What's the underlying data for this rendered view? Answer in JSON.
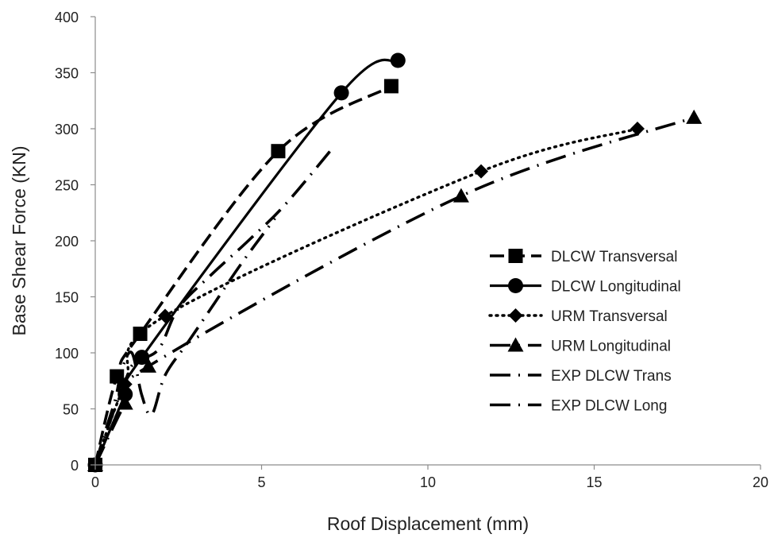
{
  "chart_data": {
    "type": "line",
    "title": "",
    "xlabel": "Roof Displacement (mm)",
    "ylabel": "Base Shear Force (KN)",
    "xlim": [
      0,
      20
    ],
    "ylim": [
      0,
      400
    ],
    "xticks": [
      "0",
      "5",
      "10",
      "15",
      "20"
    ],
    "yticks": [
      "0",
      "50",
      "100",
      "150",
      "200",
      "250",
      "300",
      "350",
      "400"
    ],
    "grid": false,
    "legend_position": "right",
    "series": [
      {
        "name": "DLCW Transversal",
        "marker": "square",
        "dash": "dashed",
        "x": [
          0,
          0.65,
          1.35,
          5.5,
          8.9
        ],
        "y": [
          0,
          79,
          117,
          280,
          338
        ]
      },
      {
        "name": "DLCW Longitudinal",
        "marker": "circle",
        "dash": "solid",
        "x": [
          0,
          0.9,
          1.4,
          7.4,
          9.1
        ],
        "y": [
          0,
          63,
          96,
          332,
          361
        ]
      },
      {
        "name": "URM Transversal",
        "marker": "diamond",
        "dash": "dotted",
        "x": [
          0,
          0.9,
          2.1,
          11.6,
          16.3
        ],
        "y": [
          0,
          72,
          133,
          262,
          300
        ]
      },
      {
        "name": "URM Longitudinal",
        "marker": "triangle",
        "dash": "longdashdot",
        "x": [
          0,
          0.9,
          1.6,
          11.0,
          18.0
        ],
        "y": [
          0,
          55,
          88,
          240,
          310
        ]
      },
      {
        "name": "EXP DLCW Trans",
        "marker": "none",
        "dash": "longdashdot",
        "x": [
          0,
          0.4,
          0.9,
          1.2,
          1.9,
          2.5,
          3.5,
          4.6,
          5.7,
          7.2
        ],
        "y": [
          0,
          35,
          75,
          92,
          103,
          140,
          170,
          200,
          232,
          285
        ]
      },
      {
        "name": "EXP DLCW Long",
        "marker": "none",
        "dash": "longdashdot",
        "x": [
          0,
          0.3,
          0.6,
          0.8,
          1.1,
          1.4,
          1.7,
          2.1,
          2.8,
          3.6,
          4.4,
          5.4
        ],
        "y": [
          0,
          30,
          58,
          85,
          100,
          62,
          45,
          80,
          110,
          145,
          180,
          220
        ]
      }
    ]
  }
}
